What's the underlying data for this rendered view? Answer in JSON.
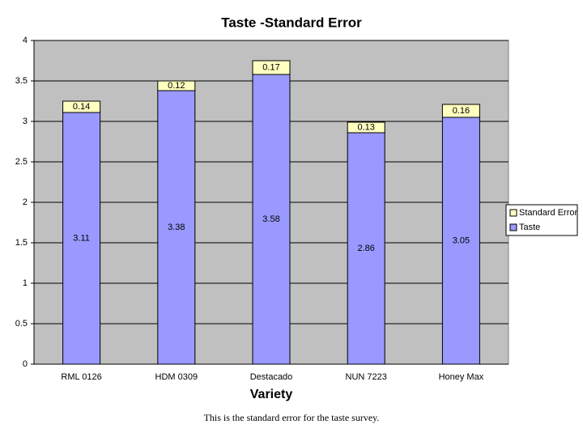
{
  "chart_data": {
    "type": "stacked_bar",
    "title": "Taste -Standard Error",
    "x_label": "Variety",
    "caption": "This is the standard error for the taste survey.",
    "categories": [
      "RML 0126",
      "HDM 0309",
      "Destacado",
      "NUN 7223",
      "Honey Max"
    ],
    "series": [
      {
        "name": "Taste",
        "color": "#9999ff",
        "values": [
          3.11,
          3.38,
          3.58,
          2.86,
          3.05
        ]
      },
      {
        "name": "Standard Error",
        "color": "#ffffc0",
        "values": [
          0.14,
          0.12,
          0.17,
          0.13,
          0.16
        ]
      }
    ],
    "ylim": [
      0,
      4
    ],
    "yticks": [
      0,
      0.5,
      1,
      1.5,
      2,
      2.5,
      3,
      3.5,
      4
    ],
    "grid": true,
    "legend": "right",
    "plot_background": "#c0c0c0"
  }
}
